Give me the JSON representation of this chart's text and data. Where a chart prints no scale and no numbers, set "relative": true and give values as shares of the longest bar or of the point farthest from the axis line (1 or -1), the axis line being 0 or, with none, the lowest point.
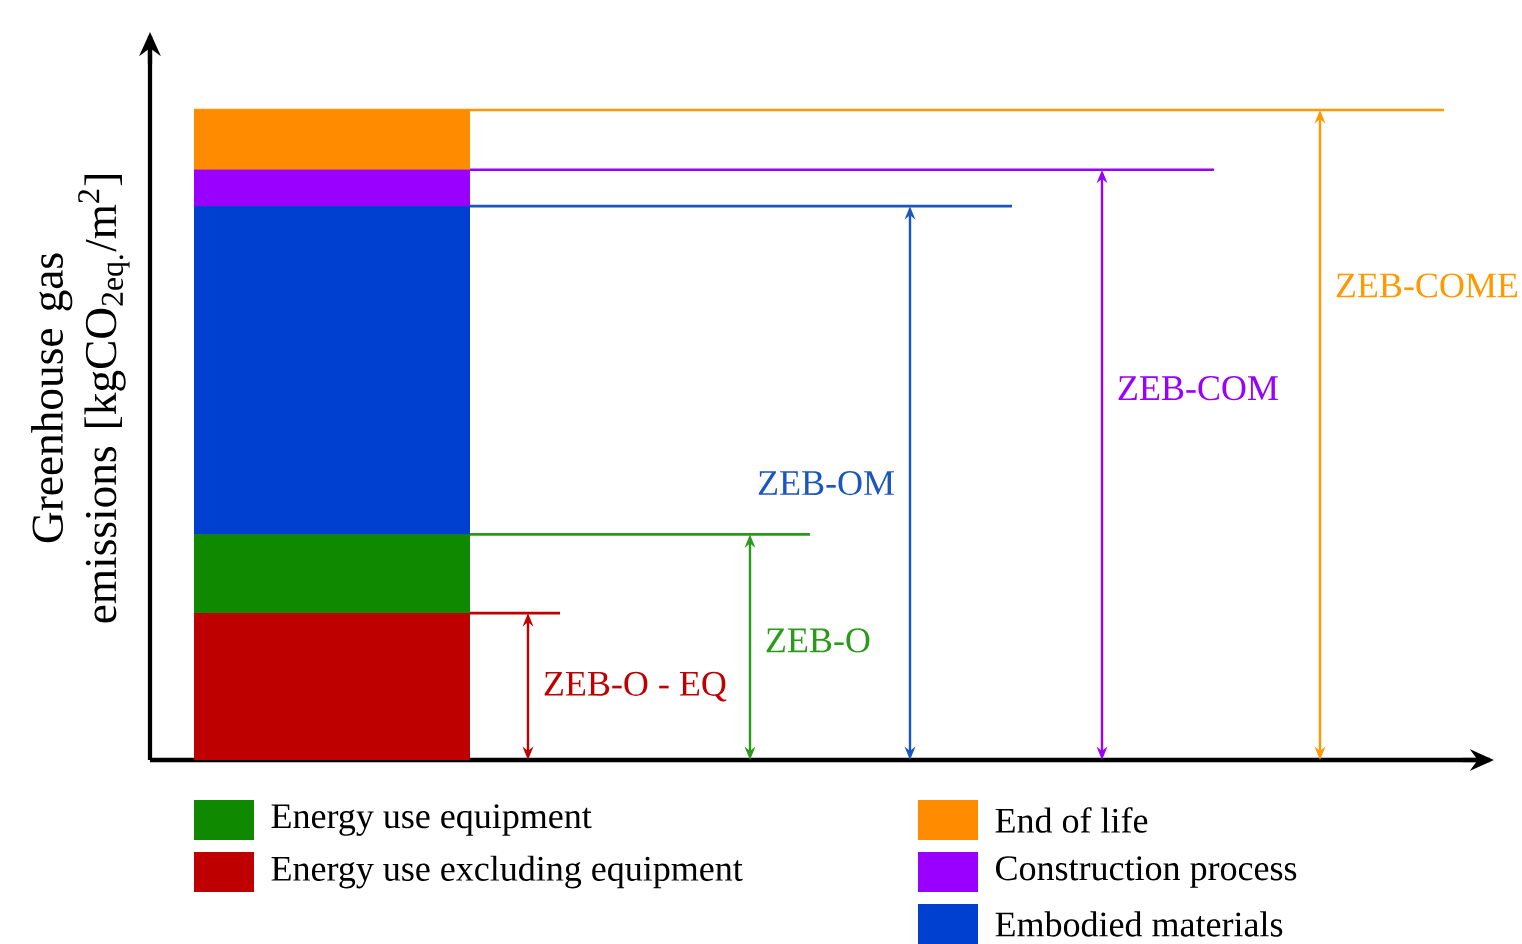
{
  "chart_data": {
    "type": "bar",
    "stacked": true,
    "relative": true,
    "ylabel": "Greenhouse gas emissions [kgCO$_{2eq.}$/m$^{2}$]",
    "categories": [
      null
    ],
    "legend": "bottom",
    "series": [
      {
        "name": "Energy use excluding equipment",
        "color": "#bf0000",
        "values": [
          0.226
        ]
      },
      {
        "name": "Energy use equipment",
        "color": "#0f8a00",
        "values": [
          0.121
        ]
      },
      {
        "name": "Embodied materials",
        "color": "#0040d0",
        "values": [
          0.505
        ]
      },
      {
        "name": "Construction process",
        "color": "#9900ff",
        "values": [
          0.056
        ]
      },
      {
        "name": "End of life",
        "color": "#ff8c00",
        "values": [
          0.092
        ]
      }
    ],
    "ref_lines": [
      {
        "axis": "y",
        "value": 0.226,
        "label": "ZEB-O - EQ",
        "color": "#c00000"
      },
      {
        "axis": "y",
        "value": 0.347,
        "label": "ZEB-O",
        "color": "#2a9a1a"
      },
      {
        "axis": "y",
        "value": 0.852,
        "label": "ZEB-OM",
        "color": "#1a55c0"
      },
      {
        "axis": "y",
        "value": 0.908,
        "label": "ZEB-COM",
        "color": "#9900ff"
      },
      {
        "axis": "y",
        "value": 1.0,
        "label": "ZEB-COME",
        "color": "#ff9900"
      }
    ]
  }
}
